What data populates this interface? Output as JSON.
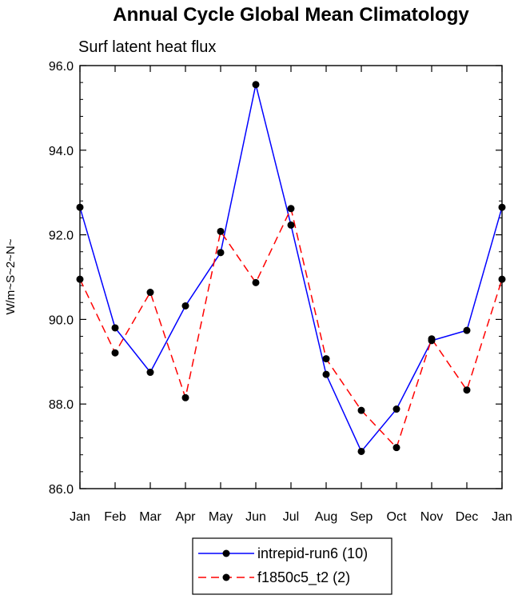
{
  "chart_data": {
    "type": "line",
    "title": "Annual Cycle Global Mean Climatology",
    "subtitle": "Surf latent heat flux",
    "ylabel": "W/m~S~2~N~",
    "xlabel": "",
    "categories": [
      "Jan",
      "Feb",
      "Mar",
      "Apr",
      "May",
      "Jun",
      "Jul",
      "Aug",
      "Sep",
      "Oct",
      "Nov",
      "Dec",
      "Jan"
    ],
    "ylim": [
      86.0,
      96.0
    ],
    "yticks": [
      "86.0",
      "88.0",
      "90.0",
      "92.0",
      "94.0",
      "96.0"
    ],
    "grid": false,
    "legend_position": "bottom-center",
    "series": [
      {
        "name": "intrepid-run6 (10)",
        "color": "#0000ff",
        "dash": "solid",
        "values": [
          92.65,
          89.8,
          88.75,
          90.32,
          91.58,
          95.55,
          92.23,
          88.7,
          86.88,
          87.88,
          89.5,
          89.74,
          92.65
        ]
      },
      {
        "name": "f1850c5_t2 (2)",
        "color": "#ff0000",
        "dash": "dashed",
        "values": [
          90.95,
          89.21,
          90.64,
          88.15,
          92.08,
          90.87,
          92.62,
          89.07,
          87.85,
          86.97,
          89.54,
          88.33,
          90.95
        ]
      }
    ]
  }
}
